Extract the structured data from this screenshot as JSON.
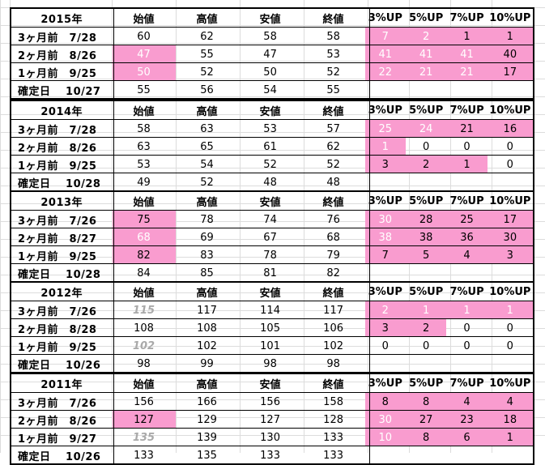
{
  "headers": [
    "始値",
    "高値",
    "安値",
    "終値",
    "3%UP",
    "5%UP",
    "7%UP",
    "10%UP"
  ],
  "blocks": [
    {
      "year": "2015年",
      "rows": [
        {
          "label": "3ヶ月前　7/28",
          "vals": [
            "60",
            "62",
            "58",
            "58",
            "7",
            "2",
            "1",
            "1"
          ]
        },
        {
          "label": "2ヶ月前　8/26",
          "vals": [
            "47",
            "55",
            "47",
            "53",
            "41",
            "41",
            "41",
            "40"
          ]
        },
        {
          "label": "1ヶ月前　9/25",
          "vals": [
            "50",
            "52",
            "50",
            "52",
            "22",
            "21",
            "21",
            "17"
          ]
        },
        {
          "label": "確定日　 10/27",
          "vals": [
            "55",
            "56",
            "54",
            "55",
            "",
            "",
            "",
            ""
          ]
        }
      ]
    },
    {
      "year": "2014年",
      "rows": [
        {
          "label": "3ヶ月前　7/28",
          "vals": [
            "58",
            "63",
            "53",
            "57",
            "25",
            "24",
            "21",
            "16"
          ]
        },
        {
          "label": "2ヶ月前　8/26",
          "vals": [
            "63",
            "65",
            "61",
            "62",
            "1",
            "0",
            "0",
            "0"
          ]
        },
        {
          "label": "1ヶ月前　9/25",
          "vals": [
            "53",
            "54",
            "52",
            "52",
            "3",
            "2",
            "1",
            "0"
          ]
        },
        {
          "label": "確定日　 10/28",
          "vals": [
            "49",
            "52",
            "48",
            "48",
            "",
            "",
            "",
            ""
          ]
        }
      ]
    },
    {
      "year": "2013年",
      "rows": [
        {
          "label": "3ヶ月前　7/26",
          "vals": [
            "75",
            "78",
            "74",
            "76",
            "30",
            "28",
            "25",
            "17"
          ]
        },
        {
          "label": "2ヶ月前　8/27",
          "vals": [
            "68",
            "69",
            "67",
            "68",
            "38",
            "38",
            "36",
            "30"
          ]
        },
        {
          "label": "1ヶ月前　9/25",
          "vals": [
            "82",
            "83",
            "78",
            "79",
            "7",
            "5",
            "4",
            "3"
          ]
        },
        {
          "label": "確定日　 10/28",
          "vals": [
            "84",
            "85",
            "81",
            "82",
            "",
            "",
            "",
            ""
          ]
        }
      ]
    },
    {
      "year": "2012年",
      "rows": [
        {
          "label": "3ヶ月前　7/26",
          "vals": [
            "115",
            "117",
            "114",
            "117",
            "2",
            "1",
            "1",
            "1"
          ]
        },
        {
          "label": "2ヶ月前　8/28",
          "vals": [
            "108",
            "108",
            "105",
            "106",
            "3",
            "2",
            "0",
            "0"
          ]
        },
        {
          "label": "1ヶ月前　9/25",
          "vals": [
            "102",
            "102",
            "101",
            "102",
            "0",
            "0",
            "0",
            "0"
          ]
        },
        {
          "label": "確定日　 10/26",
          "vals": [
            "98",
            "99",
            "98",
            "98",
            "",
            "",
            "",
            ""
          ]
        }
      ]
    },
    {
      "year": "2011年",
      "rows": [
        {
          "label": "3ヶ月前　7/26",
          "vals": [
            "156",
            "166",
            "156",
            "158",
            "8",
            "8",
            "4",
            "4"
          ]
        },
        {
          "label": "2ヶ月前　8/26",
          "vals": [
            "127",
            "129",
            "127",
            "128",
            "30",
            "27",
            "23",
            "18"
          ]
        },
        {
          "label": "1ヶ月前　9/27",
          "vals": [
            "135",
            "139",
            "130",
            "133",
            "10",
            "8",
            "6",
            "1"
          ]
        },
        {
          "label": "確定日　 10/26",
          "vals": [
            "133",
            "135",
            "133",
            "133",
            "",
            "",
            "",
            ""
          ]
        }
      ]
    }
  ],
  "colors": {
    "highlight": "#f99ccf",
    "grey_text": "#a9a9a9"
  }
}
